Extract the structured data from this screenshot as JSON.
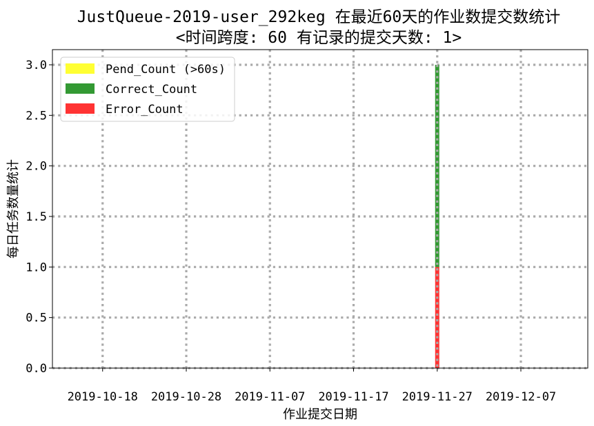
{
  "chart_data": {
    "type": "bar",
    "stacked": true,
    "title_line1": "JustQueue-2019-user_292keg 在最近60天的作业数提交数统计",
    "title_line2": "<时间跨度: 60  有记录的提交天数: 1>",
    "xlabel": "作业提交日期",
    "ylabel": "每日任务数量统计",
    "x_tick_labels": [
      "2019-10-18",
      "2019-10-28",
      "2019-11-07",
      "2019-11-17",
      "2019-11-27",
      "2019-12-07"
    ],
    "y_tick_labels": [
      "0.0",
      "0.5",
      "1.0",
      "1.5",
      "2.0",
      "2.5",
      "3.0"
    ],
    "y_ticks": [
      0,
      0.5,
      1.0,
      1.5,
      2.0,
      2.5,
      3.0
    ],
    "ylim": [
      0,
      3.15
    ],
    "xlim": [
      "2019-10-12",
      "2019-12-15"
    ],
    "grid": true,
    "legend_position": "top-left",
    "categories": [
      "2019-11-27"
    ],
    "series": [
      {
        "name": "Error_Count",
        "color": "#ff3333",
        "values": [
          1
        ]
      },
      {
        "name": "Correct_Count",
        "color": "#339933",
        "values": [
          2
        ]
      },
      {
        "name": "Pend_Count (>60s)",
        "color": "#ffff33",
        "values": [
          0
        ]
      }
    ],
    "legend_entries": [
      {
        "name": "Pend_Count (>60s)",
        "color": "#ffff33"
      },
      {
        "name": "Correct_Count",
        "color": "#339933"
      },
      {
        "name": "Error_Count",
        "color": "#ff3333"
      }
    ]
  }
}
